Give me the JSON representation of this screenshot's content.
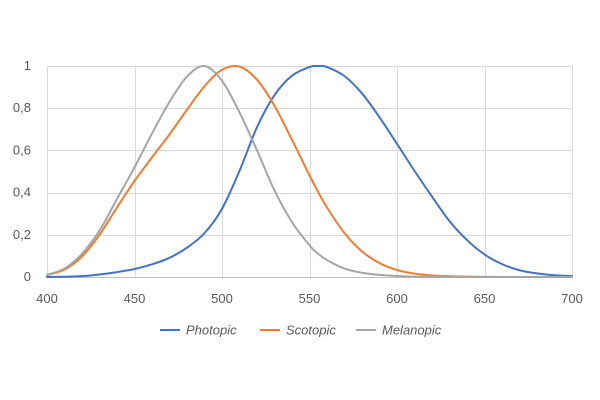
{
  "chart_data": {
    "type": "line",
    "title": "",
    "xlabel": "",
    "ylabel": "",
    "xlim": [
      400,
      700
    ],
    "ylim": [
      0,
      1
    ],
    "x_ticks": [
      400,
      450,
      500,
      550,
      600,
      650,
      700
    ],
    "x_tick_labels": [
      "400",
      "450",
      "500",
      "550",
      "600",
      "650",
      "700"
    ],
    "y_ticks": [
      0,
      0.2,
      0.4,
      0.6,
      0.8,
      1
    ],
    "y_tick_labels": [
      "0",
      "0,2",
      "0,4",
      "0,6",
      "0,8",
      "1"
    ],
    "grid": true,
    "legend_position": "bottom",
    "x": [
      400,
      410,
      420,
      430,
      440,
      450,
      460,
      470,
      480,
      490,
      500,
      510,
      520,
      530,
      540,
      550,
      555,
      560,
      570,
      580,
      590,
      600,
      610,
      620,
      630,
      640,
      650,
      660,
      670,
      680,
      690,
      700
    ],
    "series": [
      {
        "name": "Photopic",
        "color": "#4472c4",
        "values": [
          0.0004,
          0.0012,
          0.004,
          0.0116,
          0.023,
          0.038,
          0.06,
          0.091,
          0.139,
          0.208,
          0.323,
          0.503,
          0.71,
          0.862,
          0.954,
          0.995,
          1.0,
          0.995,
          0.952,
          0.87,
          0.757,
          0.631,
          0.503,
          0.381,
          0.265,
          0.175,
          0.107,
          0.061,
          0.032,
          0.017,
          0.0082,
          0.0041
        ]
      },
      {
        "name": "Scotopic",
        "color": "#ed7d31",
        "values": [
          0.0093,
          0.035,
          0.097,
          0.2,
          0.33,
          0.455,
          0.567,
          0.676,
          0.793,
          0.904,
          0.982,
          0.997,
          0.935,
          0.811,
          0.65,
          0.481,
          0.402,
          0.329,
          0.208,
          0.121,
          0.066,
          0.0332,
          0.0159,
          0.0074,
          0.0033,
          0.0015,
          0.0007,
          0.0003,
          0.0001,
          0.0001,
          0.0,
          0.0
        ]
      },
      {
        "name": "Melanopic",
        "color": "#a5a5a5",
        "values": [
          0.01,
          0.04,
          0.11,
          0.22,
          0.37,
          0.52,
          0.68,
          0.83,
          0.95,
          1.0,
          0.93,
          0.78,
          0.6,
          0.41,
          0.26,
          0.15,
          0.11,
          0.08,
          0.04,
          0.02,
          0.01,
          0.005,
          0.002,
          0.001,
          0.0005,
          0.0002,
          0.0001,
          0.0,
          0.0,
          0.0,
          0.0,
          0.0
        ]
      }
    ]
  }
}
